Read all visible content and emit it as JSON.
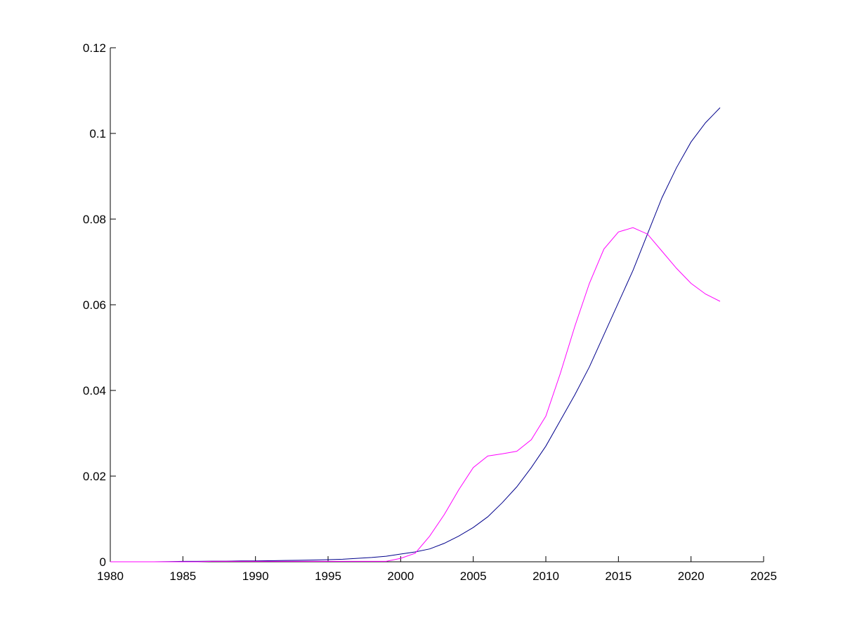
{
  "chart_data": {
    "type": "line",
    "x": [
      1980,
      1981,
      1982,
      1983,
      1984,
      1985,
      1986,
      1987,
      1988,
      1989,
      1990,
      1991,
      1992,
      1993,
      1994,
      1995,
      1996,
      1997,
      1998,
      1999,
      2000,
      2001,
      2002,
      2003,
      2004,
      2005,
      2006,
      2007,
      2008,
      2009,
      2010,
      2011,
      2012,
      2013,
      2014,
      2015,
      2016,
      2017,
      2018,
      2019,
      2020,
      2021,
      2022
    ],
    "series": [
      {
        "color": "#00008b",
        "values": [
          0,
          0,
          0,
          0,
          5e-05,
          0.0001,
          0.0001,
          0.00015,
          0.00015,
          0.0002,
          0.0002,
          0.00025,
          0.0003,
          0.00035,
          0.0004,
          0.0005,
          0.0006,
          0.0008,
          0.001,
          0.0013,
          0.0018,
          0.0023,
          0.003,
          0.0043,
          0.006,
          0.008,
          0.0105,
          0.0138,
          0.0175,
          0.022,
          0.027,
          0.033,
          0.039,
          0.0455,
          0.053,
          0.0605,
          0.068,
          0.0765,
          0.085,
          0.092,
          0.098,
          0.1025,
          0.106
        ]
      },
      {
        "color": "#ff00ff",
        "values": [
          0,
          0,
          0,
          0,
          0,
          0,
          0,
          0.0001,
          0.0001,
          0.0001,
          0.0001,
          0.0001,
          0.0001,
          0.0001,
          0.0001,
          0.0001,
          0.0001,
          0.0001,
          0.0001,
          0.0001,
          0.0008,
          0.002,
          0.006,
          0.011,
          0.0168,
          0.022,
          0.0247,
          0.0252,
          0.0258,
          0.0285,
          0.034,
          0.044,
          0.055,
          0.065,
          0.073,
          0.077,
          0.078,
          0.0765,
          0.0725,
          0.0685,
          0.065,
          0.0625,
          0.0608
        ]
      }
    ],
    "xlim": [
      1980,
      2025
    ],
    "xticks": [
      1980,
      1985,
      1990,
      1995,
      2000,
      2005,
      2010,
      2015,
      2020,
      2025
    ],
    "ylim": [
      0,
      0.12
    ],
    "yticks": [
      0,
      0.02,
      0.04,
      0.06,
      0.08,
      0.1,
      0.12
    ]
  }
}
